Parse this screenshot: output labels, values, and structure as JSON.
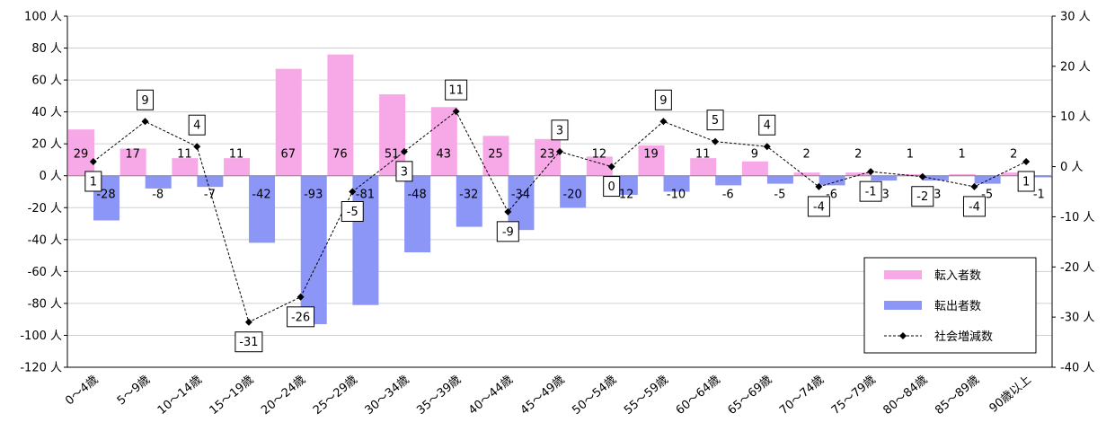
{
  "chart_data": {
    "type": "bar",
    "categories": [
      "0～4歳",
      "5～9歳",
      "10～14歳",
      "15～19歳",
      "20～24歳",
      "25～29歳",
      "30～34歳",
      "35～39歳",
      "40～44歳",
      "45～49歳",
      "50～54歳",
      "55～59歳",
      "60～64歳",
      "65～69歳",
      "70～74歳",
      "75～79歳",
      "80～84歳",
      "85～89歳",
      "90歳以上"
    ],
    "series": [
      {
        "name": "転入者数",
        "type": "bar",
        "axis": "left",
        "color": "#f7a8e6",
        "values": [
          29,
          17,
          11,
          11,
          67,
          76,
          51,
          43,
          25,
          23,
          12,
          19,
          11,
          9,
          2,
          2,
          1,
          1,
          2
        ]
      },
      {
        "name": "転出者数",
        "type": "bar",
        "axis": "left",
        "color": "#8c96f7",
        "values": [
          -28,
          -8,
          -7,
          -42,
          -93,
          -81,
          -48,
          -32,
          -34,
          -20,
          -12,
          -10,
          -6,
          -5,
          -6,
          -3,
          -3,
          -5,
          -1
        ]
      },
      {
        "name": "社会増減数",
        "type": "line",
        "axis": "right",
        "color": "#000000",
        "values": [
          1,
          9,
          4,
          -31,
          -26,
          -5,
          3,
          11,
          -9,
          3,
          0,
          9,
          5,
          4,
          -4,
          -1,
          -2,
          -4,
          1
        ]
      }
    ],
    "y_left": {
      "min": -120,
      "max": 100,
      "step": 20,
      "unit": "人"
    },
    "y_right": {
      "min": -40,
      "max": 30,
      "step": 10,
      "unit": "人"
    },
    "grid": true,
    "legend_position": "bottom-right"
  }
}
